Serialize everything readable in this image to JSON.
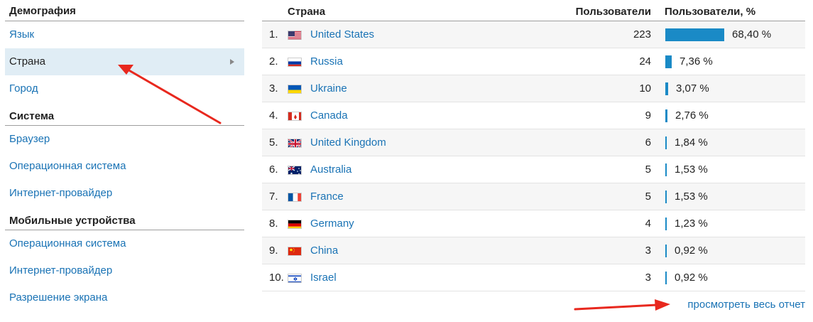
{
  "sidebar": {
    "sections": [
      {
        "title": "Демография",
        "items": [
          {
            "label": "Язык",
            "active": false
          },
          {
            "label": "Страна",
            "active": true
          },
          {
            "label": "Город",
            "active": false
          }
        ]
      },
      {
        "title": "Система",
        "items": [
          {
            "label": "Браузер",
            "active": false
          },
          {
            "label": "Операционная система",
            "active": false
          },
          {
            "label": "Интернет-провайдер",
            "active": false
          }
        ]
      },
      {
        "title": "Мобильные устройства",
        "items": [
          {
            "label": "Операционная система",
            "active": false
          },
          {
            "label": "Интернет-провайдер",
            "active": false
          },
          {
            "label": "Разрешение экрана",
            "active": false
          }
        ]
      }
    ]
  },
  "table": {
    "headers": {
      "country": "Страна",
      "users": "Пользователи",
      "users_pct": "Пользователи, %"
    },
    "rows": [
      {
        "index": "1.",
        "flag": "us-flag-icon",
        "country": "United States",
        "users": "223",
        "pct": "68,40 %",
        "pct_value": 68.4
      },
      {
        "index": "2.",
        "flag": "ru-flag-icon",
        "country": "Russia",
        "users": "24",
        "pct": "7,36 %",
        "pct_value": 7.36
      },
      {
        "index": "3.",
        "flag": "ua-flag-icon",
        "country": "Ukraine",
        "users": "10",
        "pct": "3,07 %",
        "pct_value": 3.07
      },
      {
        "index": "4.",
        "flag": "ca-flag-icon",
        "country": "Canada",
        "users": "9",
        "pct": "2,76 %",
        "pct_value": 2.76
      },
      {
        "index": "5.",
        "flag": "gb-flag-icon",
        "country": "United Kingdom",
        "users": "6",
        "pct": "1,84 %",
        "pct_value": 1.84
      },
      {
        "index": "6.",
        "flag": "au-flag-icon",
        "country": "Australia",
        "users": "5",
        "pct": "1,53 %",
        "pct_value": 1.53
      },
      {
        "index": "7.",
        "flag": "fr-flag-icon",
        "country": "France",
        "users": "5",
        "pct": "1,53 %",
        "pct_value": 1.53
      },
      {
        "index": "8.",
        "flag": "de-flag-icon",
        "country": "Germany",
        "users": "4",
        "pct": "1,23 %",
        "pct_value": 1.23
      },
      {
        "index": "9.",
        "flag": "cn-flag-icon",
        "country": "China",
        "users": "3",
        "pct": "0,92 %",
        "pct_value": 0.92
      },
      {
        "index": "10.",
        "flag": "il-flag-icon",
        "country": "Israel",
        "users": "3",
        "pct": "0,92 %",
        "pct_value": 0.92
      }
    ]
  },
  "footer": {
    "full_report_label": "просмотреть весь отчет"
  },
  "colors": {
    "link": "#1a73b5",
    "bar": "#1a8ac6",
    "active_bg": "#e0edf5",
    "annotation_arrow": "#e8281e"
  }
}
